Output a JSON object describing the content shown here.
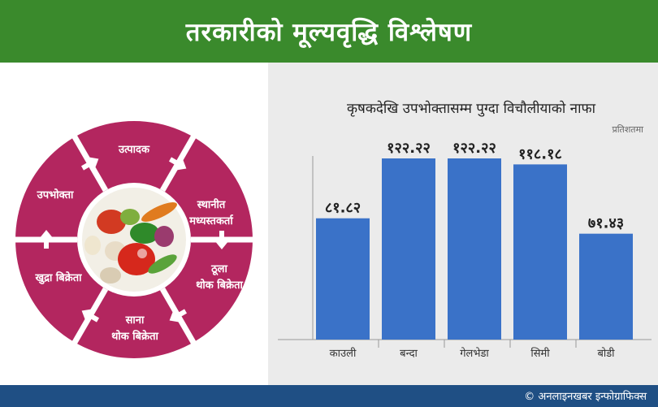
{
  "header": {
    "title": "तरकारीको मूल्यवृद्धि विश्लेषण"
  },
  "cycle": {
    "stages": [
      "उत्पादक",
      "स्थानीत\nमध्यस्तकर्ता",
      "ठूला\nथोक बिक्रेता",
      "साना\nथोक बिक्रेता",
      "खुद्रा बिक्रेता",
      "उपभोक्ता"
    ],
    "ring_color": "#b3265f",
    "center_image": "vegetables-photo"
  },
  "chart_data": {
    "type": "bar",
    "title": "कृषकदेखि उपभोक्तासम्म पुग्दा विचौलीयाको नाफा",
    "subtitle": "प्रतिशतमा",
    "categories": [
      "काउली",
      "बन्दा",
      "गेलभेडा",
      "सिमी",
      "बोडी"
    ],
    "values": [
      81.82,
      122.22,
      122.22,
      118.18,
      71.43
    ],
    "value_labels": [
      "८१.८२",
      "१२२.२२",
      "१२२.२२",
      "११८.१८",
      "७१.४३"
    ],
    "ylim": [
      0,
      150
    ],
    "bar_color": "#3a72c8",
    "grid": false
  },
  "footer": {
    "credit": "© अनलाइनखबर इन्फोग्राफिक्स"
  },
  "colors": {
    "header_bg": "#3a8a2c",
    "footer_bg": "#1f4f84",
    "panel_bg": "#ebebeb"
  }
}
